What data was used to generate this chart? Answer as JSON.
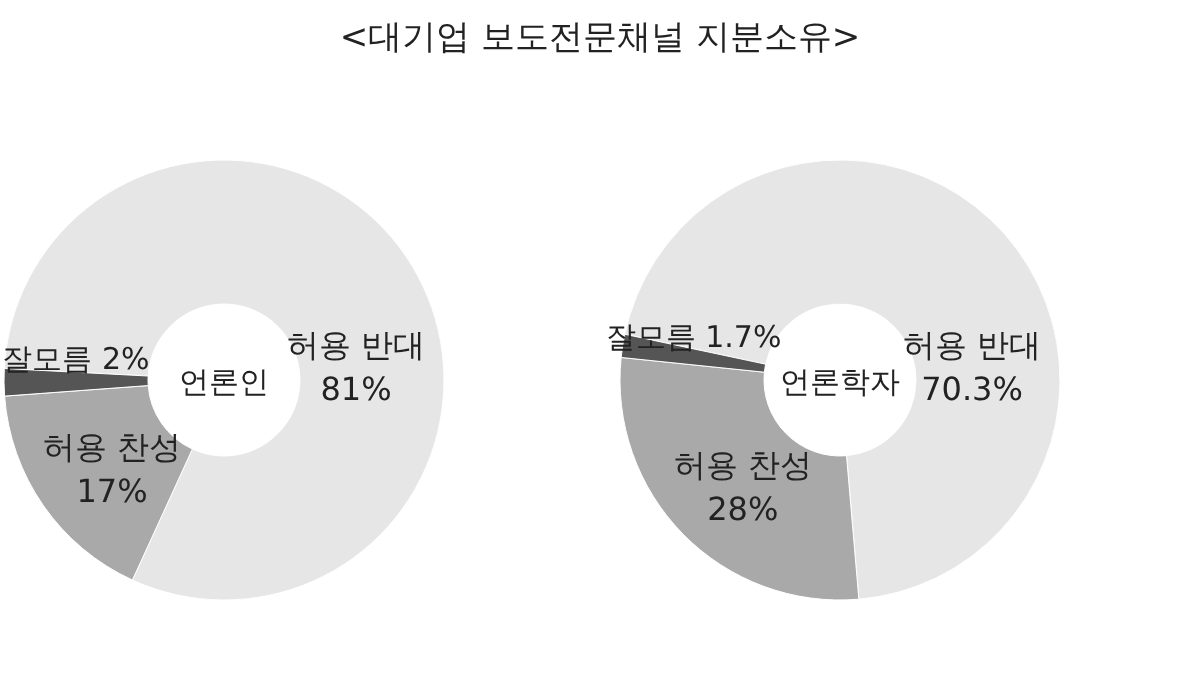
{
  "chart_data": [
    {
      "type": "donut",
      "title": "언론인",
      "annotations": [
        "<대기업 보도전문채널 지분소유>"
      ],
      "categories": [
        "허용 반대",
        "허용 찬성",
        "잘모름"
      ],
      "values": [
        81,
        17,
        2
      ],
      "value_labels": [
        "81%",
        "17%",
        "2%"
      ],
      "colors": [
        "#e6e6e6",
        "#a9a9a9",
        "#555555"
      ]
    },
    {
      "type": "donut",
      "title": "언론학자",
      "categories": [
        "허용 반대",
        "허용 찬성",
        "잘모름"
      ],
      "values": [
        70.3,
        28,
        1.7
      ],
      "value_labels": [
        "70.3%",
        "28%",
        "1.7%"
      ],
      "colors": [
        "#e6e6e6",
        "#a9a9a9",
        "#555555"
      ]
    }
  ]
}
